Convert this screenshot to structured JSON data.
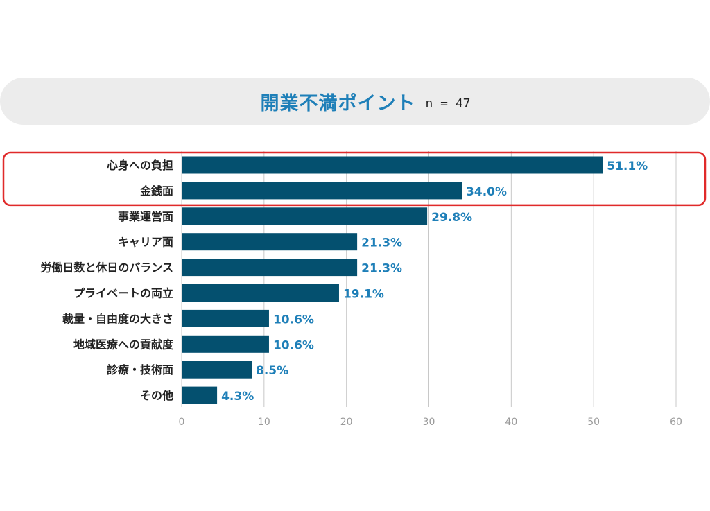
{
  "title": "開業不満ポイント",
  "sample_size": "n = 47",
  "colors": {
    "bar": "#04506f",
    "value_label": "#1e7fb8",
    "category_label": "#222222",
    "tick_label": "#9a9a9a",
    "grid": "#c8c8c8",
    "highlight": "#e02a2a",
    "title_bg": "#ececec"
  },
  "chart_data": {
    "type": "bar",
    "orientation": "horizontal",
    "title": "開業不満ポイント",
    "categories": [
      "心身への負担",
      "金銭面",
      "事業運営面",
      "キャリア面",
      "労働日数と休日のバランス",
      "プライベートの両立",
      "裁量・自由度の大きさ",
      "地域医療への貢献度",
      "診療・技術面",
      "その他"
    ],
    "values": [
      51.1,
      34.0,
      29.8,
      21.3,
      21.3,
      19.1,
      10.6,
      10.6,
      8.5,
      4.3
    ],
    "value_labels": [
      "51.1%",
      "34.0%",
      "29.8%",
      "21.3%",
      "21.3%",
      "19.1%",
      "10.6%",
      "10.6%",
      "8.5%",
      "4.3%"
    ],
    "xlim": [
      0,
      60
    ],
    "xticks": [
      0,
      10,
      20,
      30,
      40,
      50,
      60
    ],
    "grid": true,
    "highlighted_categories": [
      "心身への負担",
      "金銭面"
    ]
  }
}
